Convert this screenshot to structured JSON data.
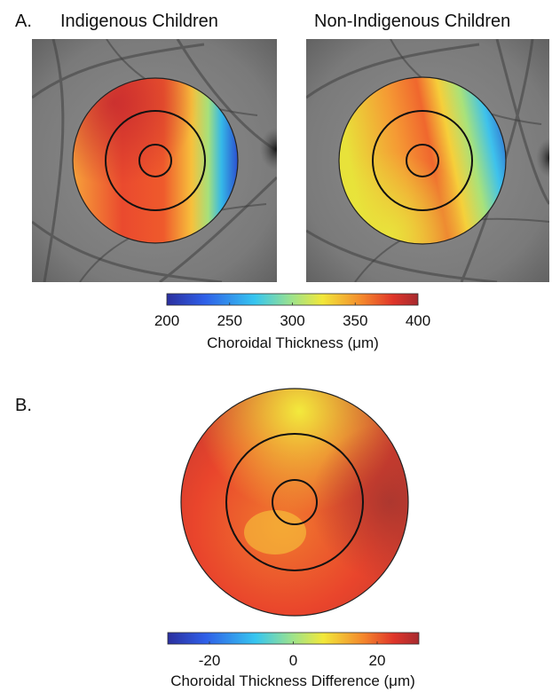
{
  "panel_a": {
    "label": "A.",
    "titles": [
      "Indigenous Children",
      "Non-Indigenous Children"
    ],
    "colorbar": {
      "ticks": [
        "200",
        "250",
        "300",
        "350",
        "400"
      ],
      "label": "Choroidal Thickness (μm)"
    }
  },
  "panel_b": {
    "label": "B.",
    "colorbar": {
      "ticks": [
        "-20",
        "0",
        "20"
      ],
      "label": "Choroidal Thickness Difference (μm)"
    }
  },
  "chart_data": [
    {
      "type": "heatmap",
      "title": "Indigenous Children",
      "colorbar_label": "Choroidal Thickness (μm)",
      "colorbar_range": [
        200,
        400
      ],
      "colorbar_ticks": [
        200,
        250,
        300,
        350,
        400
      ],
      "colormap": "jet",
      "regions": {
        "center": 385,
        "inner_ring": 375,
        "outer_nasal": 210,
        "outer_temporal": 360,
        "outer_superior": 375,
        "outer_inferior": 340
      }
    },
    {
      "type": "heatmap",
      "title": "Non-Indigenous Children",
      "colorbar_label": "Choroidal Thickness (μm)",
      "colorbar_range": [
        200,
        400
      ],
      "colorbar_ticks": [
        200,
        250,
        300,
        350,
        400
      ],
      "colormap": "jet",
      "regions": {
        "center": 370,
        "inner_ring": 350,
        "outer_nasal": 205,
        "outer_temporal": 330,
        "outer_superior": 345,
        "outer_inferior": 320
      }
    },
    {
      "type": "heatmap",
      "colorbar_label": "Choroidal Thickness Difference (μm)",
      "colorbar_range": [
        -30,
        30
      ],
      "colorbar_ticks": [
        -20,
        0,
        20
      ],
      "colormap": "jet",
      "regions": {
        "center": 15,
        "inner_superior": 5,
        "inner_inferior": 20,
        "outer_nasal": 28,
        "outer_temporal": 20,
        "outer_superior": 10
      }
    }
  ]
}
